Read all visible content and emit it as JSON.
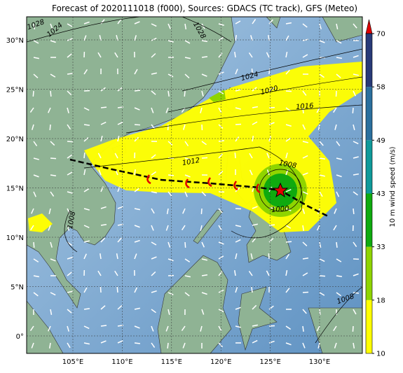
{
  "title": "Forecast of 2020111018 (f000), Sources: GDACS (TC track), GFS (Meteo)",
  "lon_labels": [
    "105°E",
    "110°E",
    "115°E",
    "120°E",
    "125°E",
    "130°E"
  ],
  "lat_labels": [
    "30°N",
    "25°N",
    "20°N",
    "15°N",
    "10°N",
    "5°N",
    "0°"
  ],
  "isobar_labels": [
    "1028",
    "1024",
    "1028",
    "1024",
    "1020",
    "1016",
    "1012",
    "1008",
    "1000",
    "1008",
    "1008"
  ],
  "colorbar": {
    "label": "10 m wind speed (m/s)",
    "ticks": [
      10,
      18,
      33,
      43,
      49,
      58,
      70
    ],
    "colors": [
      "#ffff00",
      "#8fd400",
      "#0faa0f",
      "#0f9a9a",
      "#2a6f9e",
      "#283a78"
    ],
    "extend_color": "#e00000"
  }
}
